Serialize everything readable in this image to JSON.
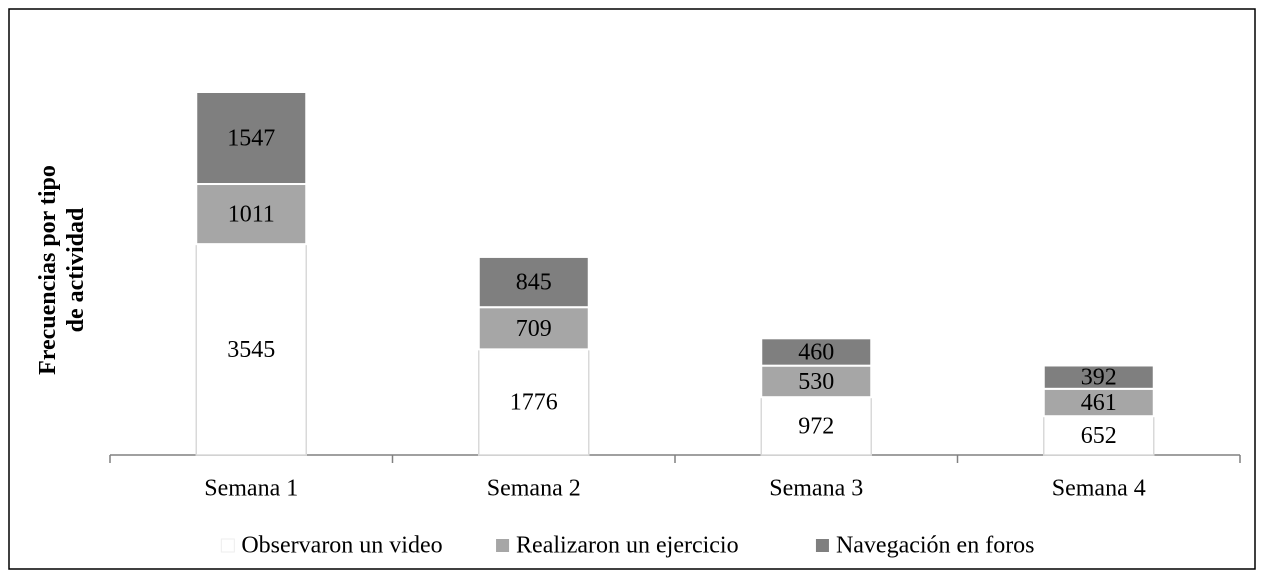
{
  "chart_data": {
    "type": "stacked_bar",
    "y_label": "Frecuencias por tipo de actividad",
    "categories": [
      "Semana 1",
      "Semana 2",
      "Semana 3",
      "Semana 4"
    ],
    "series": [
      {
        "name": "Observaron un video",
        "color": "#ffffff",
        "values": [
          3545,
          1776,
          972,
          652
        ]
      },
      {
        "name": "Realizaron un ejercicio",
        "color": "#a6a6a6",
        "values": [
          1011,
          709,
          530,
          461
        ]
      },
      {
        "name": "Navegación en foros",
        "color": "#7f7f7f",
        "values": [
          1547,
          845,
          460,
          392
        ]
      }
    ],
    "legend": "bottom"
  }
}
